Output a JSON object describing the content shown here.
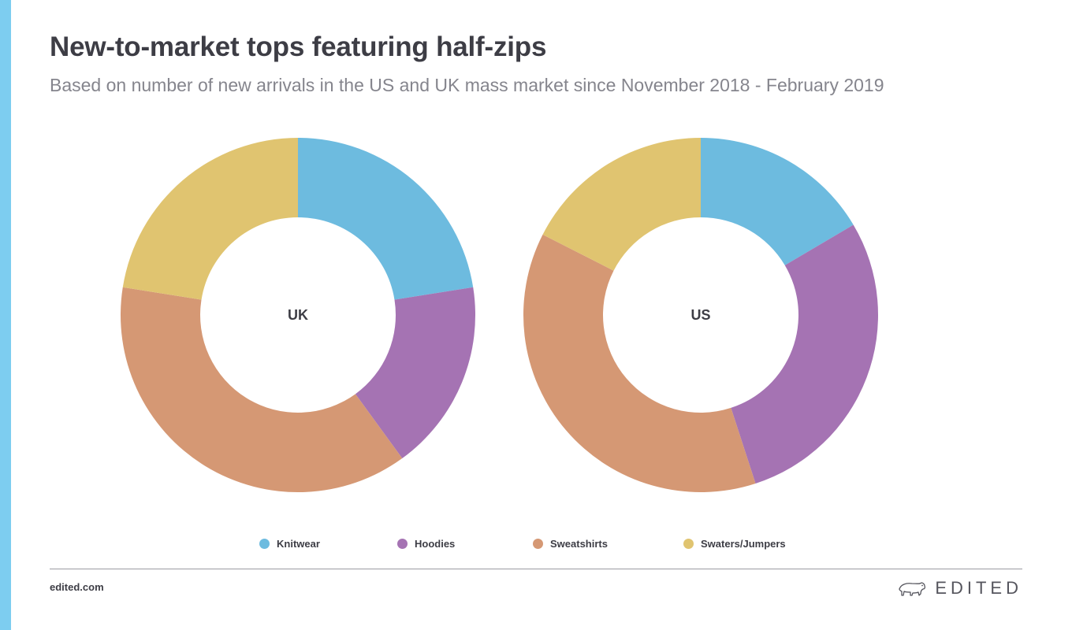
{
  "header": {
    "title": "New-to-market tops featuring half-zips",
    "subtitle": "Based on number of new arrivals in the US and UK mass market since November 2018 - February 2019"
  },
  "colors": {
    "accent_bar": "#7dcdf0",
    "Knitwear": "#6dbbdf",
    "Hoodies": "#a573b3",
    "Sweatshirts": "#d59874",
    "Swaters/Jumpers": "#e0c470"
  },
  "chart_data": [
    {
      "type": "pie",
      "variant": "donut",
      "center_label": "UK",
      "categories": [
        "Knitwear",
        "Hoodies",
        "Sweatshirts",
        "Swaters/Jumpers"
      ],
      "values": [
        22.5,
        17.5,
        37.5,
        22.5
      ]
    },
    {
      "type": "pie",
      "variant": "donut",
      "center_label": "US",
      "categories": [
        "Knitwear",
        "Hoodies",
        "Sweatshirts",
        "Swaters/Jumpers"
      ],
      "values": [
        16.5,
        28.5,
        37.5,
        17.5
      ]
    }
  ],
  "legend": {
    "items": [
      "Knitwear",
      "Hoodies",
      "Sweatshirts",
      "Swaters/Jumpers"
    ],
    "placement": "bottom"
  },
  "footer": {
    "url": "edited.com",
    "brand": "EDITED",
    "logo_icon": "polar-bear-icon"
  }
}
